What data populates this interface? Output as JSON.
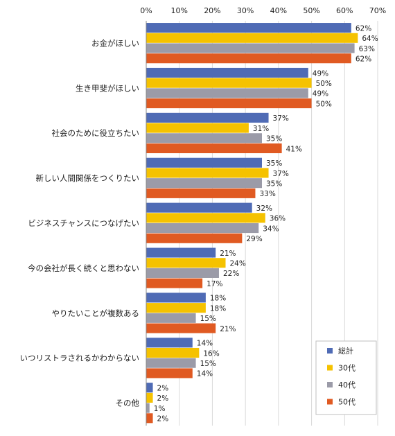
{
  "chart_data": {
    "type": "bar",
    "orientation": "horizontal",
    "title": "",
    "xlabel": "",
    "ylabel": "",
    "xlim": [
      0,
      70
    ],
    "x_ticks": [
      "0%",
      "10%",
      "20%",
      "30%",
      "40%",
      "50%",
      "60%",
      "70%"
    ],
    "x_tick_values": [
      0,
      10,
      20,
      30,
      40,
      50,
      60,
      70
    ],
    "grid": true,
    "legend_position": "bottom-right",
    "value_suffix": "%",
    "categories": [
      "お金がほしい",
      "生き甲斐がほしい",
      "社会のために役立ちたい",
      "新しい人間関係をつくりたい",
      "ビジネスチャンスにつなげたい",
      "今の会社が長く続くと思わない",
      "やりたいことが複数ある",
      "いつリストラされるかわからない",
      "その他"
    ],
    "series": [
      {
        "name": "総計",
        "color": "#4f6bb5",
        "values": [
          62,
          49,
          37,
          35,
          32,
          21,
          18,
          14,
          2
        ]
      },
      {
        "name": "30代",
        "color": "#f5c200",
        "values": [
          64,
          50,
          31,
          37,
          36,
          24,
          18,
          16,
          2
        ]
      },
      {
        "name": "40代",
        "color": "#9b9ba8",
        "values": [
          63,
          49,
          35,
          35,
          34,
          22,
          15,
          15,
          1
        ]
      },
      {
        "name": "50代",
        "color": "#e05a22",
        "values": [
          62,
          50,
          41,
          33,
          29,
          17,
          21,
          14,
          2
        ]
      }
    ]
  }
}
